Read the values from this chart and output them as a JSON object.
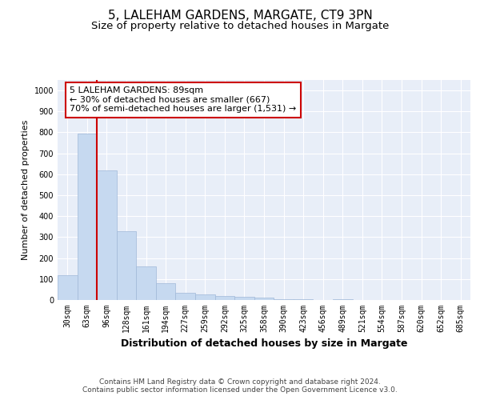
{
  "title_line1": "5, LALEHAM GARDENS, MARGATE, CT9 3PN",
  "title_line2": "Size of property relative to detached houses in Margate",
  "xlabel": "Distribution of detached houses by size in Margate",
  "ylabel": "Number of detached properties",
  "categories": [
    "30sqm",
    "63sqm",
    "96sqm",
    "128sqm",
    "161sqm",
    "194sqm",
    "227sqm",
    "259sqm",
    "292sqm",
    "325sqm",
    "358sqm",
    "390sqm",
    "423sqm",
    "456sqm",
    "489sqm",
    "521sqm",
    "554sqm",
    "587sqm",
    "620sqm",
    "652sqm",
    "685sqm"
  ],
  "values": [
    120,
    795,
    620,
    330,
    160,
    80,
    35,
    25,
    20,
    15,
    10,
    5,
    5,
    0,
    5,
    0,
    0,
    0,
    0,
    0,
    0
  ],
  "bar_color": "#c6d9f0",
  "bar_edge_color": "#a0b8d8",
  "bar_linewidth": 0.5,
  "vline_color": "#cc0000",
  "vline_linewidth": 1.5,
  "vline_position": 1.5,
  "annotation_text": "5 LALEHAM GARDENS: 89sqm\n← 30% of detached houses are smaller (667)\n70% of semi-detached houses are larger (1,531) →",
  "annotation_box_color": "#ffffff",
  "annotation_box_edge_color": "#cc0000",
  "ylim": [
    0,
    1050
  ],
  "yticks": [
    0,
    100,
    200,
    300,
    400,
    500,
    600,
    700,
    800,
    900,
    1000
  ],
  "background_color": "#ffffff",
  "plot_bg_color": "#e8eef8",
  "grid_color": "#ffffff",
  "footer_text": "Contains HM Land Registry data © Crown copyright and database right 2024.\nContains public sector information licensed under the Open Government Licence v3.0.",
  "title_fontsize": 11,
  "subtitle_fontsize": 9.5,
  "xlabel_fontsize": 9,
  "ylabel_fontsize": 8,
  "tick_fontsize": 7,
  "annotation_fontsize": 8,
  "footer_fontsize": 6.5
}
